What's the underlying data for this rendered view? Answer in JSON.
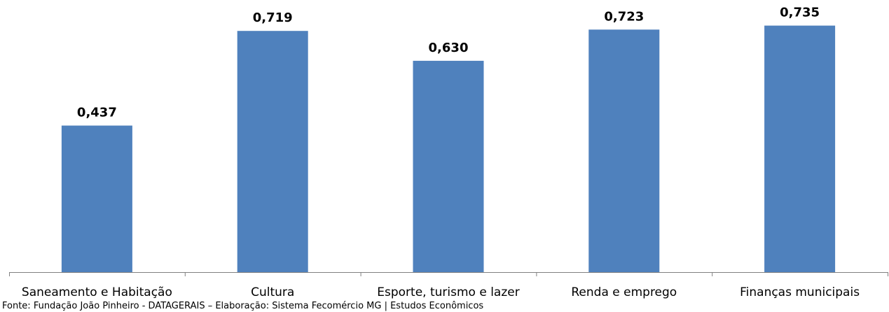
{
  "chart_data": {
    "type": "bar",
    "categories": [
      "Saneamento e Habitação",
      "Cultura",
      "Esporte, turismo e lazer",
      "Renda e emprego",
      "Finanças municipais"
    ],
    "values": [
      0.437,
      0.719,
      0.63,
      0.723,
      0.735
    ],
    "value_labels": [
      "0,437",
      "0,719",
      "0,630",
      "0,723",
      "0,735"
    ],
    "ylim": [
      0,
      1.1
    ],
    "grid": false,
    "bar_color": "#4F81BD",
    "axis_color": "#808080"
  },
  "source": "Fonte: Fundação João Pinheiro - DATAGERAIS – Elaboração: Sistema Fecomércio MG | Estudos Econômicos"
}
